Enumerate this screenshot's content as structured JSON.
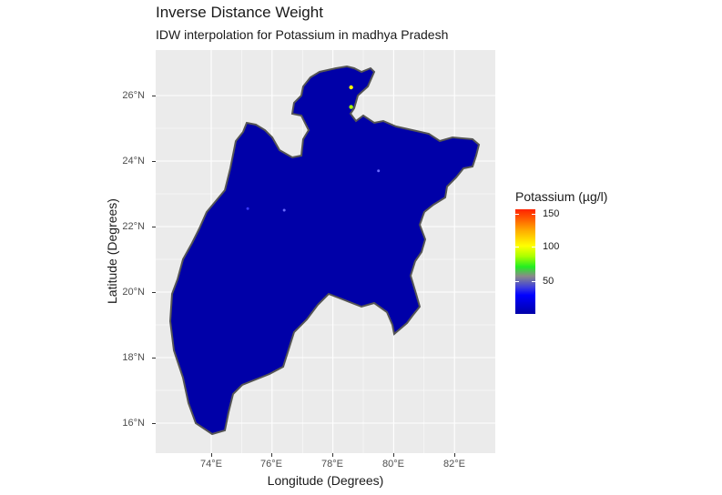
{
  "title": "Inverse Distance Weight",
  "subtitle": "IDW interpolation for Potassium in madhya Pradesh",
  "x_axis": {
    "label": "Longitude (Degrees)",
    "ticks": [
      {
        "value": 74,
        "label": "74°E"
      },
      {
        "value": 76,
        "label": "76°E"
      },
      {
        "value": 78,
        "label": "78°E"
      },
      {
        "value": 80,
        "label": "80°E"
      },
      {
        "value": 82,
        "label": "82°E"
      }
    ]
  },
  "y_axis": {
    "label": "Latitude (Degrees)",
    "ticks": [
      {
        "value": 26,
        "label": "26°N"
      },
      {
        "value": 24,
        "label": "24°N"
      },
      {
        "value": 22,
        "label": "22°N"
      },
      {
        "value": 20,
        "label": "20°N"
      },
      {
        "value": 18,
        "label": "18°N"
      },
      {
        "value": 16,
        "label": "16°N"
      }
    ]
  },
  "legend": {
    "title": "Potassium (µg/l)",
    "min": 1,
    "max": 155,
    "ticks": [
      {
        "value": 150,
        "label": "150"
      },
      {
        "value": 100,
        "label": "100"
      },
      {
        "value": 50,
        "label": "50"
      }
    ]
  },
  "map": {
    "fill_color": "#0000a8",
    "border_color": "#555555",
    "hotspots": [
      {
        "lon": 78.6,
        "lat": 26.25,
        "value": 110
      },
      {
        "lon": 78.6,
        "lat": 25.65,
        "value": 95
      },
      {
        "lon": 79.5,
        "lat": 23.7,
        "value": 40
      },
      {
        "lon": 76.4,
        "lat": 22.5,
        "value": 30
      },
      {
        "lon": 75.2,
        "lat": 22.55,
        "value": 25
      }
    ]
  }
}
